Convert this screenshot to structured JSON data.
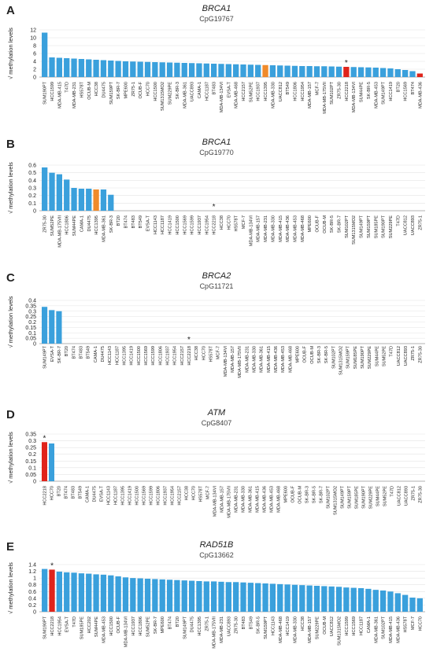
{
  "colors": {
    "default_bar": "#3aa0dc",
    "highlight_red": "#e0241b",
    "highlight_orange": "#f08a2a",
    "gridline": "#e3e3e3",
    "axis": "#9a9a9a",
    "text": "#222222"
  },
  "chart_data": [
    {
      "panel": "A",
      "type": "bar",
      "title": "BRCA1",
      "subtitle": "CpG19767",
      "ylabel": "√ methylation levels",
      "ylim": [
        0,
        12
      ],
      "yticks": [
        "0",
        "2",
        "4",
        "6",
        "8",
        "10",
        "12"
      ],
      "grid": true,
      "categories": [
        "SUM190PT",
        "HCC1599",
        "MDA-MB-415",
        "T47D",
        "MDA-MB-231",
        "HS578T",
        "OCUB-M",
        "HCC38",
        "DU4475",
        "SUM159PT",
        "SK-BR-7",
        "MPE600",
        "ZR75-1",
        "OCUB-F",
        "HCC70",
        "HCC1500",
        "SUM1315MO2",
        "SUM229PE",
        "SK-BR-3",
        "MDA-MB-361",
        "UACC893",
        "CAMA-1",
        "HCC1187",
        "BT483",
        "MDA-MB-134VI",
        "EVSA-T",
        "MDA-MB-468",
        "HCC2157",
        "SUM52PE",
        "HCC1937",
        "HCC1395",
        "MDA-MB-330",
        "UACC812",
        "BT549",
        "HCC1806",
        "HCC1954",
        "MDA-MB-157",
        "MCF-7",
        "MDA-MB-175VII",
        "SUM102PT",
        "ZR75-30",
        "HCC2218",
        "MDA-MB-134VI",
        "SUM44PE",
        "SK-BR-5",
        "MDA-MB-453",
        "SUM149PT",
        "HCC1419",
        "BT20",
        "HCC1569",
        "BT474",
        "MDA-MB-436"
      ],
      "values": [
        11.3,
        5.0,
        4.9,
        4.8,
        4.7,
        4.6,
        4.5,
        4.4,
        4.3,
        4.2,
        4.1,
        4.0,
        3.95,
        3.9,
        3.85,
        3.8,
        3.75,
        3.7,
        3.65,
        3.6,
        3.55,
        3.5,
        3.45,
        3.4,
        3.35,
        3.3,
        3.25,
        3.2,
        3.15,
        3.1,
        3.05,
        3.0,
        2.95,
        2.9,
        2.85,
        2.8,
        2.8,
        2.75,
        2.75,
        2.7,
        2.65,
        2.6,
        2.55,
        2.5,
        2.45,
        2.4,
        2.3,
        2.2,
        2.0,
        1.8,
        1.5,
        0.9
      ],
      "highlights": {
        "30": "orange",
        "41": "red",
        "51": "red"
      },
      "asterisk_index": 41
    },
    {
      "panel": "B",
      "type": "bar",
      "title": "BRCA1",
      "subtitle": "CpG19770",
      "ylabel": "√ methylation levels",
      "ylim": [
        0,
        0.6
      ],
      "yticks": [
        "0",
        "0.1",
        "0.2",
        "0.3",
        "0.4",
        "0.5",
        "0.6"
      ],
      "grid": true,
      "categories": [
        "ZR75-30",
        "SUM52PE",
        "MDA-MB-175VII",
        "HCC1806",
        "SUM44PE",
        "CAMA-1",
        "DU4475",
        "HCC1395",
        "MDA-MB-361",
        "SK-BR-3",
        "BT20",
        "BT474",
        "BT483",
        "BT549",
        "EVSA-T",
        "HCC1143",
        "HCC1187",
        "HCC1419",
        "HCC1500",
        "HCC1569",
        "HCC1599",
        "HCC1937",
        "HCC1954",
        "HCC2218",
        "HCC38",
        "HCC70",
        "HS578T",
        "MCF-7",
        "MDA-MB-134VI",
        "MDA-MB-157",
        "MDA-MB-231",
        "MDA-MB-330",
        "MDA-MB-415",
        "MDA-MB-436",
        "MDA-MB-453",
        "MDA-MB-468",
        "MPE600",
        "OCUB-F",
        "OCUB-M",
        "SK-BR-5",
        "SK-BR-7",
        "SUM102PT",
        "SUM1315MO2",
        "SUM149PT",
        "SUM159PT",
        "SUM185PE",
        "SUM190PT",
        "SUM229PE",
        "T47D",
        "UACC812",
        "UACC893",
        "ZR75-1"
      ],
      "values": [
        0.57,
        0.5,
        0.48,
        0.41,
        0.3,
        0.29,
        0.29,
        0.28,
        0.28,
        0.21,
        0,
        0,
        0,
        0,
        0,
        0,
        0,
        0,
        0,
        0,
        0,
        0,
        0,
        0,
        0,
        0,
        0,
        0,
        0,
        0,
        0,
        0,
        0,
        0,
        0,
        0,
        0,
        0,
        0,
        0,
        0,
        0,
        0,
        0,
        0,
        0,
        0,
        0,
        0,
        0,
        0,
        0
      ],
      "highlights": {
        "7": "orange"
      },
      "asterisk_index": 23
    },
    {
      "panel": "C",
      "type": "bar",
      "title": "BRCA2",
      "subtitle": "CpG11721",
      "ylabel": "√ methylation levels",
      "ylim": [
        0,
        0.4
      ],
      "yticks": [
        "0",
        "0.05",
        "0.1",
        "0.15",
        "0.2",
        "0.25",
        "0.3",
        "0.35",
        "0.4"
      ],
      "grid": true,
      "categories": [
        "SUM149PT",
        "EVSA-T",
        "SK-BR-7",
        "BT20",
        "BT474",
        "BT483",
        "BT549",
        "CAMA-1",
        "DU4475",
        "HCC1143",
        "HCC1187",
        "HCC1395",
        "HCC1419",
        "HCC1500",
        "HCC1569",
        "HCC1599",
        "HCC1806",
        "HCC1937",
        "HCC1954",
        "HCC2157",
        "HCC2218",
        "HCC38",
        "HCC70",
        "HS578T",
        "MCF-7",
        "MDA-MB-134VI",
        "MDA-MB-157",
        "MDA-MB-175VII",
        "MDA-MB-231",
        "MDA-MB-330",
        "MDA-MB-361",
        "MDA-MB-415",
        "MDA-MB-436",
        "MDA-MB-453",
        "MDA-MB-468",
        "MPE600",
        "OCUB-F",
        "OCUB-M",
        "SK-BR-3",
        "SK-BR-5",
        "SUM102PT",
        "SUM1315MO2",
        "SUM159PT",
        "SUM185PE",
        "SUM190PT",
        "SUM229PE",
        "SUM44PE",
        "SUM52PE",
        "T47D",
        "UACC812",
        "UACC893",
        "ZR75-1",
        "ZR75-30"
      ],
      "values": [
        0.34,
        0.31,
        0.3,
        0,
        0,
        0,
        0,
        0,
        0,
        0,
        0,
        0,
        0,
        0,
        0,
        0,
        0,
        0,
        0,
        0,
        0,
        0,
        0,
        0,
        0,
        0,
        0,
        0,
        0,
        0,
        0,
        0,
        0,
        0,
        0,
        0,
        0,
        0,
        0,
        0,
        0,
        0,
        0,
        0,
        0,
        0,
        0,
        0,
        0,
        0,
        0,
        0,
        0
      ],
      "highlights": {},
      "asterisk_index": 20
    },
    {
      "panel": "D",
      "type": "bar",
      "title": "ATM",
      "subtitle": "CpG8407",
      "ylabel": "√ methylation levels",
      "ylim": [
        0,
        0.35
      ],
      "yticks": [
        "0",
        "0.05",
        "0.1",
        "0.15",
        "0.2",
        "0.25",
        "0.3",
        "0.35"
      ],
      "grid": true,
      "categories": [
        "HCC2218",
        "HCC70",
        "BT20",
        "BT474",
        "BT483",
        "BT549",
        "CAMA-1",
        "DU4475",
        "EVSA-T",
        "HCC1143",
        "HCC1187",
        "HCC1395",
        "HCC1419",
        "HCC1500",
        "HCC1569",
        "HCC1599",
        "HCC1806",
        "HCC1937",
        "HCC1954",
        "HCC2157",
        "HCC38",
        "HCC70",
        "HS578T",
        "MCF-7",
        "MDA-MB-134VI",
        "MDA-MB-157",
        "MDA-MB-175VII",
        "MDA-MB-231",
        "MDA-MB-330",
        "MDA-MB-361",
        "MDA-MB-415",
        "MDA-MB-436",
        "MDA-MB-453",
        "MDA-MB-468",
        "MPE600",
        "OCUB-F",
        "OCUB-M",
        "SK-BR-3",
        "SK-BR-5",
        "SK-BR-7",
        "SUM102PT",
        "SUM1315MO2",
        "SUM149PT",
        "SUM159PT",
        "SUM185PE",
        "SUM190PT",
        "SUM229PE",
        "SUM44PE",
        "SUM52PE",
        "T47D",
        "UACC812",
        "UACC893",
        "ZR75-1",
        "ZR75-30"
      ],
      "values": [
        0.29,
        0.28,
        0,
        0,
        0,
        0,
        0,
        0,
        0,
        0,
        0,
        0,
        0,
        0,
        0,
        0,
        0,
        0,
        0,
        0,
        0,
        0,
        0,
        0,
        0,
        0,
        0,
        0,
        0,
        0,
        0,
        0,
        0,
        0,
        0,
        0,
        0,
        0,
        0,
        0,
        0,
        0,
        0,
        0,
        0,
        0,
        0,
        0,
        0,
        0,
        0,
        0,
        0,
        0
      ],
      "highlights": {
        "0": "red"
      },
      "asterisk_index": 0
    },
    {
      "panel": "E",
      "type": "bar",
      "title": "RAD51B",
      "subtitle": "CpG13662",
      "ylabel": "√ methylation levels",
      "ylim": [
        0,
        1.4
      ],
      "yticks": [
        "0",
        "0.2",
        "0.4",
        "0.6",
        "0.8",
        "1",
        "1.2",
        "1.4"
      ],
      "grid": true,
      "categories": [
        "SUM190PT",
        "HCC2218",
        "HCC1954",
        "EVSA-T",
        "T47D",
        "SUM185PE",
        "HCC202",
        "SUM44PE",
        "MDA-MB-453",
        "HCC1500",
        "OCUB-F",
        "MDA-MB-134VI",
        "HCC1937",
        "HCC1806",
        "SUM52PE",
        "SK-BR-7",
        "MPE600",
        "BT474",
        "BT20",
        "SUM149PT",
        "DU4475",
        "HCC1395",
        "ZR75-1",
        "MDA-MB-175VII",
        "MDA-MB-231",
        "UACC893",
        "ZR75-30",
        "BT483",
        "BT549",
        "SK-BR-5",
        "SUM159PT",
        "HCC1143",
        "MDA-MB-468",
        "HCC1419",
        "MDA-MB-330",
        "HCC38",
        "MDA-MB-157",
        "SUM229PE",
        "OCUB-M",
        "UACC812",
        "SUM1315MO2",
        "HCC1599",
        "HCC1569",
        "HCC1187",
        "CAMA-1",
        "MDA-MB-361",
        "SUM102PT",
        "MDA-MB-415",
        "MDA-MB-436",
        "HS578T",
        "MCF-7",
        "HCC70"
      ],
      "values": [
        1.27,
        1.25,
        1.19,
        1.17,
        1.16,
        1.14,
        1.13,
        1.11,
        1.1,
        1.08,
        1.05,
        1.02,
        1.0,
        0.99,
        0.98,
        0.97,
        0.96,
        0.95,
        0.94,
        0.93,
        0.92,
        0.91,
        0.9,
        0.9,
        0.89,
        0.88,
        0.88,
        0.87,
        0.86,
        0.85,
        0.84,
        0.83,
        0.82,
        0.81,
        0.8,
        0.79,
        0.78,
        0.77,
        0.76,
        0.75,
        0.74,
        0.72,
        0.71,
        0.7,
        0.68,
        0.65,
        0.63,
        0.6,
        0.55,
        0.5,
        0.42,
        0.4
      ],
      "highlights": {
        "1": "red"
      },
      "asterisk_index": 1
    }
  ]
}
